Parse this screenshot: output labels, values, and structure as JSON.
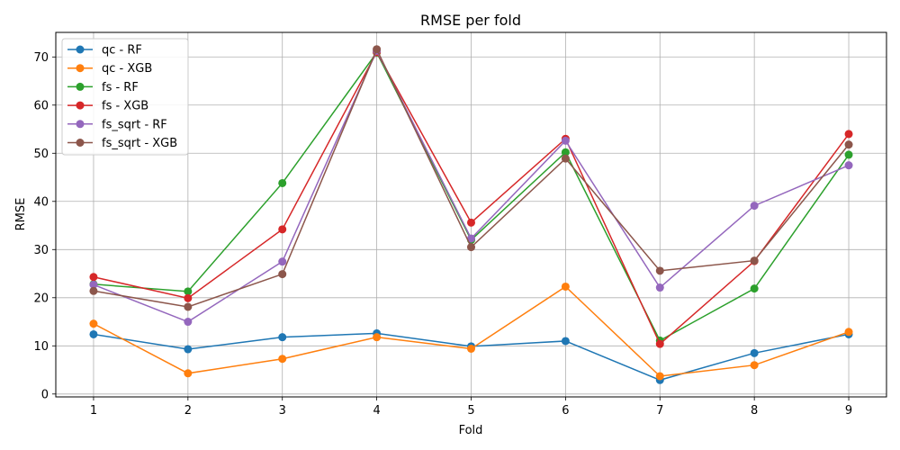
{
  "chart_data": {
    "type": "line",
    "title": "RMSE per fold",
    "xlabel": "Fold",
    "ylabel": "RMSE",
    "x": [
      1,
      2,
      3,
      4,
      5,
      6,
      7,
      8,
      9
    ],
    "x_ticks": [
      "1",
      "2",
      "3",
      "4",
      "5",
      "6",
      "7",
      "8",
      "9"
    ],
    "xlim": [
      0.6,
      9.4
    ],
    "ylim": [
      -0.6,
      75.1
    ],
    "y_ticks": [
      0,
      10,
      20,
      30,
      40,
      50,
      60,
      70
    ],
    "grid": true,
    "legend_position": "top-left",
    "series": [
      {
        "name": "qc - RF",
        "color": "#1f77b4",
        "values": [
          12.4,
          9.3,
          11.8,
          12.6,
          9.9,
          11.0,
          2.9,
          8.5,
          12.4
        ]
      },
      {
        "name": "qc - XGB",
        "color": "#ff7f0e",
        "values": [
          14.6,
          4.3,
          7.3,
          11.8,
          9.4,
          22.3,
          3.7,
          6.0,
          12.9
        ]
      },
      {
        "name": "fs - RF",
        "color": "#2ca02c",
        "values": [
          22.8,
          21.3,
          43.8,
          70.9,
          32.0,
          50.2,
          11.1,
          21.9,
          49.7
        ]
      },
      {
        "name": "fs - XGB",
        "color": "#d62728",
        "values": [
          24.3,
          19.9,
          34.2,
          71.0,
          35.6,
          53.0,
          10.4,
          27.6,
          54.0
        ]
      },
      {
        "name": "fs_sqrt - RF",
        "color": "#9467bd",
        "values": [
          22.7,
          15.0,
          27.5,
          71.3,
          32.3,
          52.6,
          22.1,
          39.1,
          47.5
        ]
      },
      {
        "name": "fs_sqrt - XGB",
        "color": "#8c564b",
        "values": [
          21.4,
          18.1,
          24.9,
          71.6,
          30.5,
          48.9,
          25.6,
          27.7,
          51.8
        ]
      }
    ]
  }
}
